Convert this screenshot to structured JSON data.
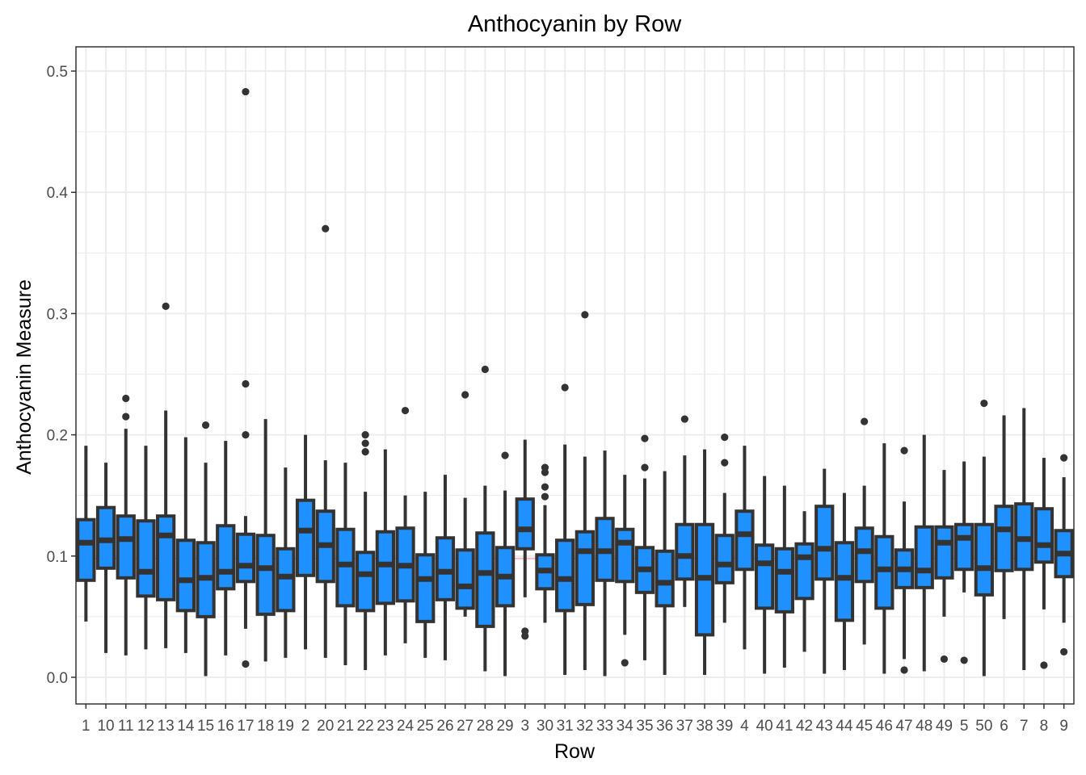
{
  "chart_data": {
    "type": "boxplot",
    "title": "Anthocyanin by Row",
    "xlabel": "Row",
    "ylabel": "Anthocyanin Measure",
    "ylim": [
      -0.022,
      0.52
    ],
    "yticks": [
      0.0,
      0.1,
      0.2,
      0.3,
      0.4,
      0.5
    ],
    "ytick_labels": [
      "0.0",
      "0.1",
      "0.2",
      "0.3",
      "0.4",
      "0.5"
    ],
    "reference_line": 0.098,
    "grid": true,
    "legend": "none",
    "colors": {
      "box_fill": "#1e90ff",
      "box_stroke": "#333333",
      "reference_line": "#ffb6c1",
      "grid": "#ebebeb",
      "panel_border": "#333333"
    },
    "categories": [
      "1",
      "10",
      "11",
      "12",
      "13",
      "14",
      "15",
      "16",
      "17",
      "18",
      "19",
      "2",
      "20",
      "21",
      "22",
      "23",
      "24",
      "25",
      "26",
      "27",
      "28",
      "29",
      "3",
      "30",
      "31",
      "32",
      "33",
      "34",
      "35",
      "36",
      "37",
      "38",
      "39",
      "4",
      "40",
      "41",
      "42",
      "43",
      "44",
      "45",
      "46",
      "47",
      "48",
      "49",
      "5",
      "50",
      "6",
      "7",
      "8",
      "9"
    ],
    "boxes": [
      {
        "category": "1",
        "whisker_low": 0.046,
        "q1": 0.08,
        "median": 0.111,
        "q3": 0.13,
        "whisker_high": 0.191,
        "outliers": []
      },
      {
        "category": "10",
        "whisker_low": 0.02,
        "q1": 0.09,
        "median": 0.113,
        "q3": 0.14,
        "whisker_high": 0.177,
        "outliers": []
      },
      {
        "category": "11",
        "whisker_low": 0.018,
        "q1": 0.082,
        "median": 0.114,
        "q3": 0.133,
        "whisker_high": 0.205,
        "outliers": [
          0.23,
          0.215
        ]
      },
      {
        "category": "12",
        "whisker_low": 0.023,
        "q1": 0.067,
        "median": 0.087,
        "q3": 0.129,
        "whisker_high": 0.191,
        "outliers": []
      },
      {
        "category": "13",
        "whisker_low": 0.024,
        "q1": 0.064,
        "median": 0.117,
        "q3": 0.133,
        "whisker_high": 0.22,
        "outliers": [
          0.306
        ]
      },
      {
        "category": "14",
        "whisker_low": 0.02,
        "q1": 0.055,
        "median": 0.08,
        "q3": 0.113,
        "whisker_high": 0.198,
        "outliers": []
      },
      {
        "category": "15",
        "whisker_low": 0.001,
        "q1": 0.05,
        "median": 0.082,
        "q3": 0.111,
        "whisker_high": 0.177,
        "outliers": [
          0.208
        ]
      },
      {
        "category": "16",
        "whisker_low": 0.018,
        "q1": 0.073,
        "median": 0.087,
        "q3": 0.125,
        "whisker_high": 0.195,
        "outliers": []
      },
      {
        "category": "17",
        "whisker_low": 0.04,
        "q1": 0.079,
        "median": 0.092,
        "q3": 0.118,
        "whisker_high": 0.133,
        "outliers": [
          0.483,
          0.242,
          0.2,
          0.011
        ]
      },
      {
        "category": "18",
        "whisker_low": 0.013,
        "q1": 0.052,
        "median": 0.09,
        "q3": 0.117,
        "whisker_high": 0.213,
        "outliers": []
      },
      {
        "category": "19",
        "whisker_low": 0.016,
        "q1": 0.055,
        "median": 0.083,
        "q3": 0.106,
        "whisker_high": 0.173,
        "outliers": []
      },
      {
        "category": "2",
        "whisker_low": 0.023,
        "q1": 0.084,
        "median": 0.121,
        "q3": 0.146,
        "whisker_high": 0.2,
        "outliers": []
      },
      {
        "category": "20",
        "whisker_low": 0.016,
        "q1": 0.079,
        "median": 0.109,
        "q3": 0.137,
        "whisker_high": 0.179,
        "outliers": [
          0.37
        ]
      },
      {
        "category": "21",
        "whisker_low": 0.01,
        "q1": 0.059,
        "median": 0.093,
        "q3": 0.122,
        "whisker_high": 0.177,
        "outliers": []
      },
      {
        "category": "22",
        "whisker_low": 0.006,
        "q1": 0.055,
        "median": 0.085,
        "q3": 0.103,
        "whisker_high": 0.153,
        "outliers": [
          0.2,
          0.193,
          0.186
        ]
      },
      {
        "category": "23",
        "whisker_low": 0.018,
        "q1": 0.061,
        "median": 0.093,
        "q3": 0.12,
        "whisker_high": 0.188,
        "outliers": []
      },
      {
        "category": "24",
        "whisker_low": 0.028,
        "q1": 0.063,
        "median": 0.092,
        "q3": 0.123,
        "whisker_high": 0.15,
        "outliers": [
          0.22
        ]
      },
      {
        "category": "25",
        "whisker_low": 0.016,
        "q1": 0.046,
        "median": 0.081,
        "q3": 0.101,
        "whisker_high": 0.153,
        "outliers": []
      },
      {
        "category": "26",
        "whisker_low": 0.014,
        "q1": 0.064,
        "median": 0.087,
        "q3": 0.115,
        "whisker_high": 0.167,
        "outliers": []
      },
      {
        "category": "27",
        "whisker_low": 0.05,
        "q1": 0.057,
        "median": 0.075,
        "q3": 0.105,
        "whisker_high": 0.148,
        "outliers": [
          0.233
        ]
      },
      {
        "category": "28",
        "whisker_low": 0.005,
        "q1": 0.042,
        "median": 0.086,
        "q3": 0.119,
        "whisker_high": 0.158,
        "outliers": [
          0.254
        ]
      },
      {
        "category": "29",
        "whisker_low": 0.001,
        "q1": 0.059,
        "median": 0.083,
        "q3": 0.107,
        "whisker_high": 0.154,
        "outliers": [
          0.183
        ]
      },
      {
        "category": "3",
        "whisker_low": 0.066,
        "q1": 0.106,
        "median": 0.122,
        "q3": 0.147,
        "whisker_high": 0.196,
        "outliers": [
          0.038,
          0.034
        ]
      },
      {
        "category": "30",
        "whisker_low": 0.045,
        "q1": 0.073,
        "median": 0.088,
        "q3": 0.101,
        "whisker_high": 0.142,
        "outliers": [
          0.173,
          0.169,
          0.157,
          0.149
        ]
      },
      {
        "category": "31",
        "whisker_low": 0.002,
        "q1": 0.055,
        "median": 0.081,
        "q3": 0.113,
        "whisker_high": 0.192,
        "outliers": [
          0.239
        ]
      },
      {
        "category": "32",
        "whisker_low": 0.006,
        "q1": 0.06,
        "median": 0.104,
        "q3": 0.12,
        "whisker_high": 0.182,
        "outliers": [
          0.299
        ]
      },
      {
        "category": "33",
        "whisker_low": 0.001,
        "q1": 0.08,
        "median": 0.104,
        "q3": 0.131,
        "whisker_high": 0.187,
        "outliers": []
      },
      {
        "category": "34",
        "whisker_low": 0.035,
        "q1": 0.079,
        "median": 0.111,
        "q3": 0.122,
        "whisker_high": 0.167,
        "outliers": [
          0.012
        ]
      },
      {
        "category": "35",
        "whisker_low": 0.014,
        "q1": 0.07,
        "median": 0.089,
        "q3": 0.107,
        "whisker_high": 0.164,
        "outliers": [
          0.197,
          0.173
        ]
      },
      {
        "category": "36",
        "whisker_low": 0.002,
        "q1": 0.059,
        "median": 0.078,
        "q3": 0.104,
        "whisker_high": 0.17,
        "outliers": []
      },
      {
        "category": "37",
        "whisker_low": 0.058,
        "q1": 0.081,
        "median": 0.1,
        "q3": 0.126,
        "whisker_high": 0.183,
        "outliers": [
          0.213
        ]
      },
      {
        "category": "38",
        "whisker_low": 0.002,
        "q1": 0.035,
        "median": 0.082,
        "q3": 0.126,
        "whisker_high": 0.188,
        "outliers": []
      },
      {
        "category": "39",
        "whisker_low": 0.045,
        "q1": 0.078,
        "median": 0.093,
        "q3": 0.117,
        "whisker_high": 0.152,
        "outliers": [
          0.198,
          0.177
        ]
      },
      {
        "category": "4",
        "whisker_low": 0.023,
        "q1": 0.089,
        "median": 0.118,
        "q3": 0.137,
        "whisker_high": 0.191,
        "outliers": []
      },
      {
        "category": "40",
        "whisker_low": 0.003,
        "q1": 0.057,
        "median": 0.094,
        "q3": 0.109,
        "whisker_high": 0.166,
        "outliers": []
      },
      {
        "category": "41",
        "whisker_low": 0.008,
        "q1": 0.054,
        "median": 0.087,
        "q3": 0.106,
        "whisker_high": 0.158,
        "outliers": []
      },
      {
        "category": "42",
        "whisker_low": 0.021,
        "q1": 0.065,
        "median": 0.099,
        "q3": 0.11,
        "whisker_high": 0.137,
        "outliers": []
      },
      {
        "category": "43",
        "whisker_low": 0.003,
        "q1": 0.081,
        "median": 0.106,
        "q3": 0.141,
        "whisker_high": 0.172,
        "outliers": []
      },
      {
        "category": "44",
        "whisker_low": 0.006,
        "q1": 0.047,
        "median": 0.082,
        "q3": 0.111,
        "whisker_high": 0.152,
        "outliers": []
      },
      {
        "category": "45",
        "whisker_low": 0.027,
        "q1": 0.079,
        "median": 0.104,
        "q3": 0.123,
        "whisker_high": 0.158,
        "outliers": [
          0.211
        ]
      },
      {
        "category": "46",
        "whisker_low": 0.003,
        "q1": 0.057,
        "median": 0.089,
        "q3": 0.116,
        "whisker_high": 0.193,
        "outliers": []
      },
      {
        "category": "47",
        "whisker_low": 0.015,
        "q1": 0.074,
        "median": 0.089,
        "q3": 0.105,
        "whisker_high": 0.145,
        "outliers": [
          0.187,
          0.006
        ]
      },
      {
        "category": "48",
        "whisker_low": 0.005,
        "q1": 0.074,
        "median": 0.088,
        "q3": 0.124,
        "whisker_high": 0.2,
        "outliers": []
      },
      {
        "category": "49",
        "whisker_low": 0.05,
        "q1": 0.082,
        "median": 0.111,
        "q3": 0.124,
        "whisker_high": 0.171,
        "outliers": [
          0.015
        ]
      },
      {
        "category": "5",
        "whisker_low": 0.07,
        "q1": 0.089,
        "median": 0.115,
        "q3": 0.126,
        "whisker_high": 0.178,
        "outliers": [
          0.014
        ]
      },
      {
        "category": "50",
        "whisker_low": 0.001,
        "q1": 0.068,
        "median": 0.09,
        "q3": 0.126,
        "whisker_high": 0.182,
        "outliers": [
          0.226
        ]
      },
      {
        "category": "6",
        "whisker_low": 0.048,
        "q1": 0.088,
        "median": 0.122,
        "q3": 0.141,
        "whisker_high": 0.216,
        "outliers": []
      },
      {
        "category": "7",
        "whisker_low": 0.006,
        "q1": 0.089,
        "median": 0.114,
        "q3": 0.143,
        "whisker_high": 0.222,
        "outliers": []
      },
      {
        "category": "8",
        "whisker_low": 0.056,
        "q1": 0.095,
        "median": 0.109,
        "q3": 0.139,
        "whisker_high": 0.181,
        "outliers": [
          0.01
        ]
      },
      {
        "category": "9",
        "whisker_low": 0.045,
        "q1": 0.083,
        "median": 0.102,
        "q3": 0.121,
        "whisker_high": 0.165,
        "outliers": [
          0.181,
          0.021
        ]
      }
    ]
  }
}
